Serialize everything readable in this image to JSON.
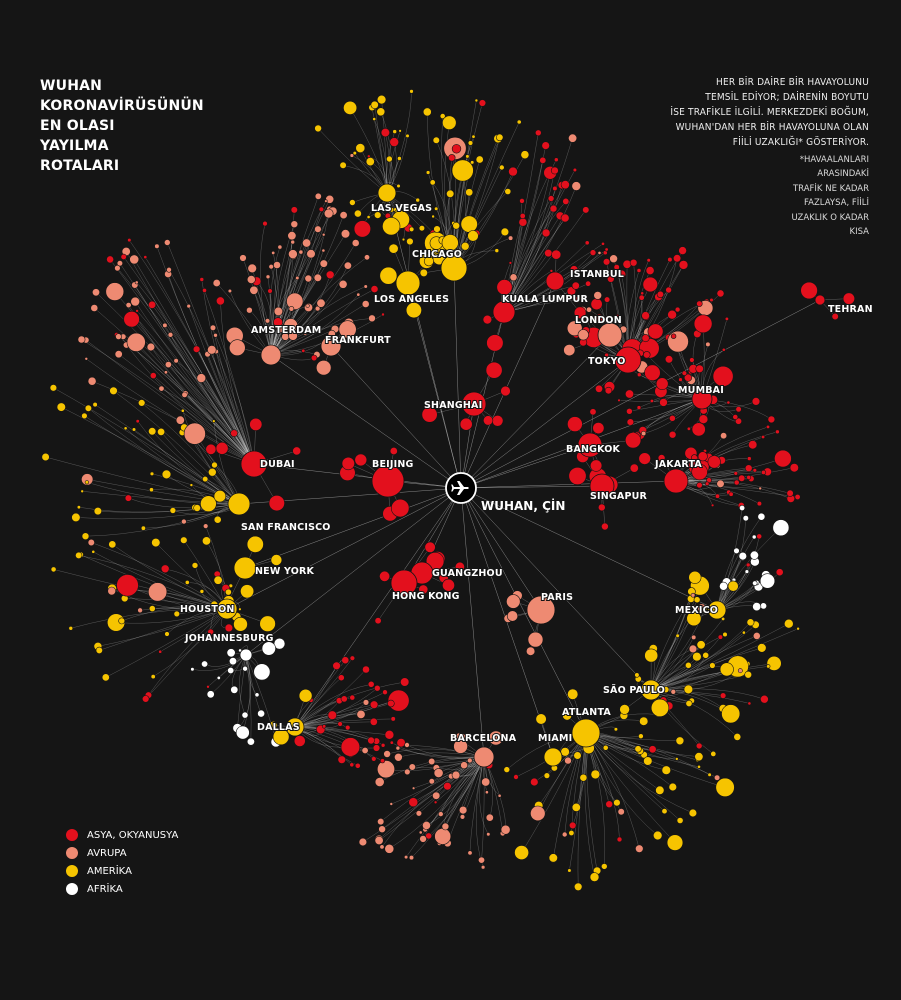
{
  "title_lines": [
    "WUHAN",
    "KORONAVİRÜSÜNÜN",
    "EN OLASI",
    "YAYILMA",
    "ROTALARI"
  ],
  "description_lines": [
    "HER BİR DAİRE BİR HAVAYOLUNU",
    "TEMSİL EDİYOR; DAİRENİN BOYUTU",
    "İSE TRAFİKLE İLGİLİ. MERKEZDEKİ BOĞUM,",
    "WUHAN'DAN HER BİR HAVAYOLUNA OLAN",
    "FİİLİ UZAKLIĞI* GÖSTERİYOR."
  ],
  "note_lines": [
    "*HAVAALANLARI",
    "ARASINDAKİ",
    "TRAFİK NE KADAR",
    "FAZLAYSA, FİİLİ",
    "UZAKLIK O KADAR",
    "KISA"
  ],
  "center": {
    "label": "WUHAN, ÇİN",
    "icon": "airplane-icon"
  },
  "colors": {
    "asia": "#e3101d",
    "europe": "#ee8a72",
    "america": "#f6c400",
    "africa": "#ffffff",
    "background": "#151515",
    "link": "#e8e8e8"
  },
  "legend": [
    {
      "label": "ASYA, OKYANUSYA",
      "color": "#e3101d"
    },
    {
      "label": "AVRUPA",
      "color": "#ee8a72"
    },
    {
      "label": "AMERİKA",
      "color": "#f6c400"
    },
    {
      "label": "AFRİKA",
      "color": "#ffffff"
    }
  ],
  "hubs": [
    {
      "name": "SHANGHAI",
      "region": "asia"
    },
    {
      "name": "BEIJING",
      "region": "asia"
    },
    {
      "name": "GUANGZHOU",
      "region": "asia"
    },
    {
      "name": "HONG KONG",
      "region": "asia"
    },
    {
      "name": "PARIS",
      "region": "europe"
    },
    {
      "name": "KUALA LUMPUR",
      "region": "asia"
    },
    {
      "name": "ISTANBUL",
      "region": "asia"
    },
    {
      "name": "LONDON",
      "region": "europe"
    },
    {
      "name": "TOKYO",
      "region": "asia"
    },
    {
      "name": "BANGKOK",
      "region": "asia"
    },
    {
      "name": "SINGAPUR",
      "region": "asia"
    },
    {
      "name": "JAKARTA",
      "region": "asia"
    },
    {
      "name": "MUMBAI",
      "region": "asia"
    },
    {
      "name": "TEHRAN",
      "region": "asia"
    },
    {
      "name": "DUBAI",
      "region": "asia"
    },
    {
      "name": "AMSTERDAM",
      "region": "europe"
    },
    {
      "name": "FRANKFURT",
      "region": "europe"
    },
    {
      "name": "LAS VEGAS",
      "region": "america"
    },
    {
      "name": "CHICAGO",
      "region": "america"
    },
    {
      "name": "LOS ANGELES",
      "region": "america"
    },
    {
      "name": "SAN FRANCISCO",
      "region": "america"
    },
    {
      "name": "NEW YORK",
      "region": "america"
    },
    {
      "name": "HOUSTON",
      "region": "america"
    },
    {
      "name": "JOHANNESBURG",
      "region": "africa"
    },
    {
      "name": "DALLAS",
      "region": "america"
    },
    {
      "name": "BARCELONA",
      "region": "europe"
    },
    {
      "name": "MIAMI",
      "region": "america"
    },
    {
      "name": "ATLANTA",
      "region": "america"
    },
    {
      "name": "SÃO PAULO",
      "region": "america"
    },
    {
      "name": "MEXICO",
      "region": "america"
    }
  ]
}
